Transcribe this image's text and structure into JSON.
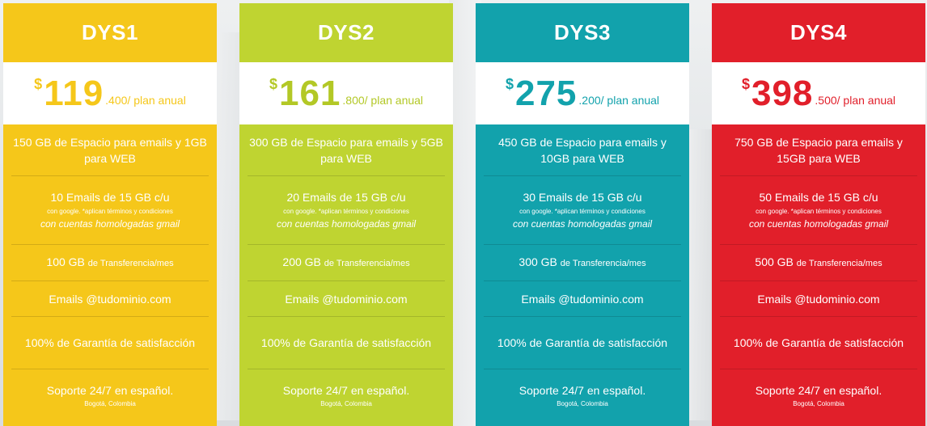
{
  "plans": [
    {
      "name": "DYS1",
      "color": "#f5c71a",
      "price_color": "#f5c71a",
      "currency": "$",
      "price_main": "119",
      "price_suffix": ".400/ plan anual",
      "storage": "150 GB de Espacio para emails y 1GB para WEB",
      "emails": "10 Emails de 15 GB c/u",
      "emails_note": "con google. *aplican términos y condiciones",
      "emails_italic": "con cuentas homologadas gmail",
      "transfer_amount": "100 GB",
      "transfer_label": "de Transferencia/mes",
      "domain": "Emails @tudominio.com",
      "guarantee": "100% de Garantía de satisfacción",
      "support": "Soporte 24/7 en español.",
      "location": "Bogotá, Colombia"
    },
    {
      "name": "DYS2",
      "color": "#bfd431",
      "price_color": "#b3c826",
      "currency": "$",
      "price_main": "161",
      "price_suffix": ".800/ plan anual",
      "storage": "300 GB de Espacio para emails y 5GB para WEB",
      "emails": "20 Emails de 15 GB c/u",
      "emails_note": "con google. *aplican términos y condiciones",
      "emails_italic": "con cuentas homologadas gmail",
      "transfer_amount": "200 GB",
      "transfer_label": "de Transferencia/mes",
      "domain": "Emails @tudominio.com",
      "guarantee": "100% de Garantía de satisfacción",
      "support": "Soporte 24/7 en español.",
      "location": "Bogotá, Colombia"
    },
    {
      "name": "DYS3",
      "color": "#12a2ac",
      "price_color": "#12a2ac",
      "currency": "$",
      "price_main": "275",
      "price_suffix": ".200/ plan anual",
      "storage": "450 GB de Espacio para emails y 10GB para WEB",
      "emails": "30 Emails de 15 GB c/u",
      "emails_note": "con google. *aplican términos y condiciones",
      "emails_italic": "con cuentas homologadas gmail",
      "transfer_amount": "300 GB",
      "transfer_label": "de Transferencia/mes",
      "domain": "Emails @tudominio.com",
      "guarantee": "100% de Garantía de satisfacción",
      "support": "Soporte 24/7 en español.",
      "location": "Bogotá, Colombia"
    },
    {
      "name": "DYS4",
      "color": "#e11f2a",
      "price_color": "#e11f2a",
      "currency": "$",
      "price_main": "398",
      "price_suffix": ".500/ plan anual",
      "storage": "750 GB de Espacio para emails y 15GB para WEB",
      "emails": "50 Emails de 15 GB c/u",
      "emails_note": "con google. *aplican términos y condiciones",
      "emails_italic": "con cuentas homologadas gmail",
      "transfer_amount": "500 GB",
      "transfer_label": "de Transferencia/mes",
      "domain": "Emails @tudominio.com",
      "guarantee": "100% de Garantía de satisfacción",
      "support": "Soporte 24/7 en español.",
      "location": "Bogotá, Colombia"
    }
  ]
}
